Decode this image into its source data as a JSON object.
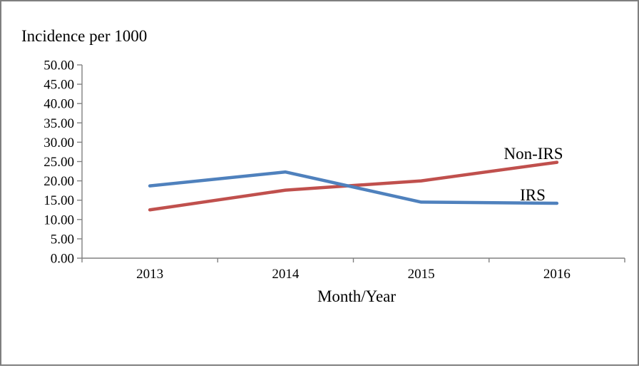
{
  "page": {
    "background_color": "#FFFFFF",
    "border_color": "#7F7F7F"
  },
  "chart_data": {
    "type": "line",
    "title": "Incidence per 1000",
    "xlabel": "Month/Year",
    "ylabel": "",
    "categories": [
      "2013",
      "2014",
      "2015",
      "2016"
    ],
    "series": [
      {
        "name": "Non-IRS",
        "color": "#C0504D",
        "values": [
          12.5,
          17.6,
          20.0,
          24.8
        ]
      },
      {
        "name": "IRS",
        "color": "#4F81BD",
        "values": [
          18.7,
          22.3,
          14.5,
          14.2
        ]
      }
    ],
    "ylim": [
      0,
      50
    ],
    "y_tick_step": 5,
    "y_tick_labels": [
      "0.00",
      "5.00",
      "10.00",
      "15.00",
      "20.00",
      "25.00",
      "30.00",
      "35.00",
      "40.00",
      "45.00",
      "50.00"
    ],
    "grid": false,
    "legend": "inline-labels-at-line-end",
    "axis_color": "#808080",
    "line_width": 4.5
  }
}
